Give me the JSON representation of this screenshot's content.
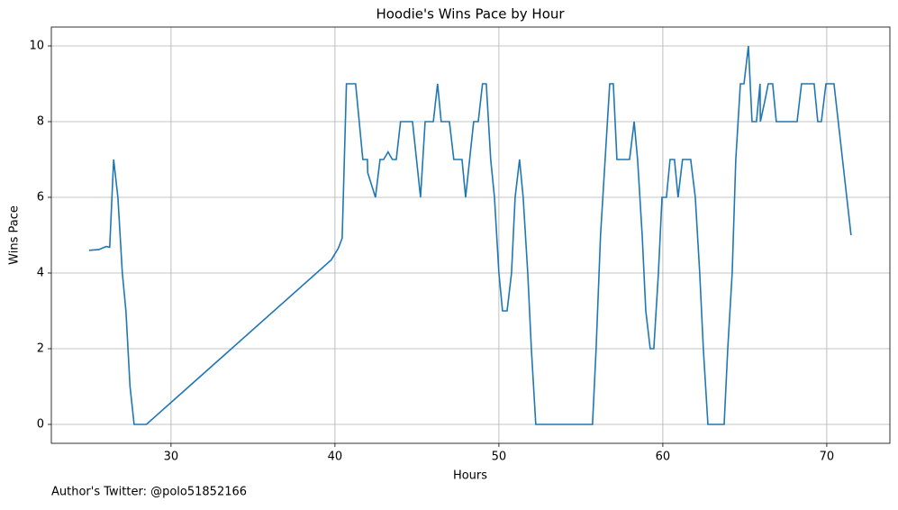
{
  "chart_data": {
    "type": "line",
    "title": "Hoodie's Wins Pace by Hour",
    "xlabel": "Hours",
    "ylabel": "Wins Pace",
    "footnote": "Author's Twitter: @polo51852166",
    "x": [
      25.0,
      25.6,
      26.04,
      26.26,
      26.5,
      26.76,
      27.03,
      27.25,
      27.5,
      27.75,
      28.5,
      39.78,
      40.2,
      40.44,
      40.7,
      41.26,
      41.7,
      41.98,
      42.0,
      42.47,
      42.75,
      42.97,
      43.24,
      43.5,
      43.74,
      44.0,
      44.73,
      45.22,
      45.5,
      46.0,
      46.26,
      46.48,
      46.98,
      47.25,
      47.75,
      47.97,
      48.46,
      48.74,
      49.0,
      49.23,
      49.5,
      49.73,
      50.0,
      50.22,
      50.5,
      50.77,
      50.99,
      51.26,
      51.48,
      51.76,
      51.98,
      52.25,
      55.71,
      55.93,
      56.2,
      56.48,
      56.76,
      56.98,
      57.2,
      57.97,
      58.25,
      58.46,
      58.74,
      58.96,
      59.23,
      59.45,
      59.73,
      59.95,
      60.22,
      60.44,
      60.71,
      60.93,
      61.2,
      61.7,
      61.98,
      62.25,
      62.47,
      62.75,
      63.74,
      63.96,
      64.23,
      64.45,
      64.73,
      64.95,
      65.22,
      65.44,
      65.71,
      65.93,
      65.95,
      66.2,
      66.43,
      66.7,
      66.92,
      68.19,
      68.46,
      69.23,
      69.45,
      69.67,
      69.95,
      70.44,
      71.48
    ],
    "series": [
      {
        "name": "Wins Pace",
        "color": "#1f77b4",
        "values": [
          4.6,
          4.62,
          4.7,
          4.68,
          7,
          6,
          4,
          3,
          1,
          0,
          0,
          4.35,
          4.65,
          4.92,
          9,
          9,
          7,
          7,
          6.65,
          6,
          7,
          7,
          7.2,
          7,
          7,
          8,
          8,
          6,
          8,
          8,
          9,
          8,
          8,
          7,
          7,
          6,
          8,
          8,
          9,
          9,
          7,
          6,
          4,
          3,
          3,
          4,
          6,
          7,
          6,
          4,
          2,
          0,
          0,
          2,
          5,
          7,
          9,
          9,
          7,
          7,
          8,
          7,
          5,
          3,
          2,
          2,
          4,
          6,
          6,
          7,
          7,
          6,
          7,
          7,
          6,
          4,
          2,
          0,
          0,
          2,
          4,
          7,
          9,
          9,
          10,
          8,
          8,
          9,
          8,
          8.5,
          9,
          9,
          8,
          8,
          9,
          9,
          8,
          8,
          9,
          9,
          5
        ]
      }
    ],
    "xlim": [
      22.7,
      73.85
    ],
    "ylim": [
      -0.5,
      10.5
    ],
    "xticks": [
      30,
      40,
      50,
      60,
      70
    ],
    "yticks": [
      0,
      2,
      4,
      6,
      8,
      10
    ],
    "grid": true
  }
}
